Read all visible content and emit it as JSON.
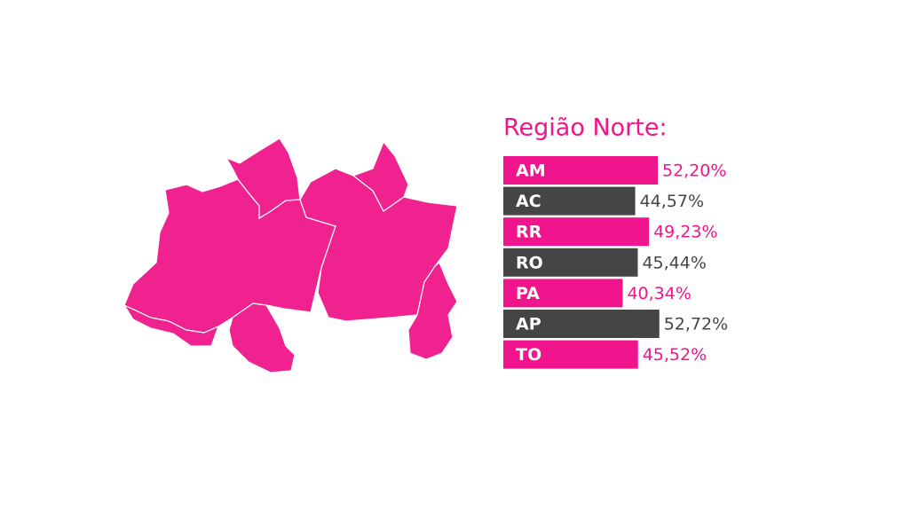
{
  "chart_data": {
    "type": "bar",
    "orientation": "horizontal",
    "title": "Região Norte:",
    "categories": [
      "AM",
      "AC",
      "RR",
      "RO",
      "PA",
      "AP",
      "TO"
    ],
    "values": [
      52.2,
      44.57,
      49.23,
      45.44,
      40.34,
      52.72,
      45.52
    ],
    "value_labels": [
      "52,20%",
      "44,57%",
      "49,23%",
      "45,44%",
      "40,34%",
      "52,72%",
      "45,52%"
    ],
    "colors": [
      "#f0158c",
      "#454545",
      "#f0158c",
      "#454545",
      "#f0158c",
      "#454545",
      "#f0158c"
    ],
    "xlim": [
      0,
      60
    ]
  }
}
